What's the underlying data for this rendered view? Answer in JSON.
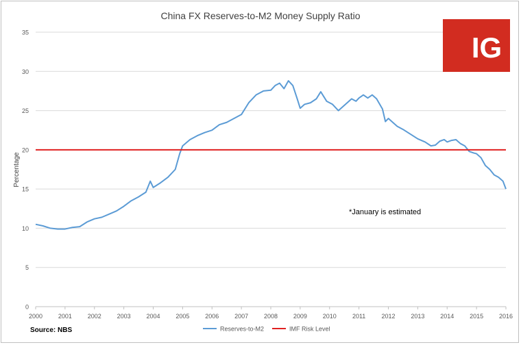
{
  "colors": {
    "series_line": "#5b9bd5",
    "risk_line": "#e02020",
    "grid": "#d9d9d9",
    "logo_bg": "#d22c20",
    "logo_text": "#ffffff"
  },
  "logo": {
    "text": "IG"
  },
  "source": "Source: NBS",
  "chart_data": {
    "type": "line",
    "title": "China FX Reserves-to-M2 Money Supply Ratio",
    "xlabel": "",
    "ylabel": "Percentage",
    "xlim": [
      2000,
      2016
    ],
    "ylim": [
      0,
      35
    ],
    "grid": true,
    "legend_position": "bottom-center",
    "x_ticks": [
      2000,
      2001,
      2002,
      2003,
      2004,
      2005,
      2006,
      2007,
      2008,
      2009,
      2010,
      2011,
      2012,
      2013,
      2014,
      2015,
      2016
    ],
    "y_ticks": [
      0,
      5,
      10,
      15,
      20,
      25,
      30,
      35
    ],
    "annotation": "*January is estimated",
    "series": [
      {
        "name": "Reserves-to-M2",
        "points": [
          [
            2000.0,
            10.5
          ],
          [
            2000.25,
            10.3
          ],
          [
            2000.5,
            10.0
          ],
          [
            2000.75,
            9.9
          ],
          [
            2001.0,
            9.9
          ],
          [
            2001.25,
            10.1
          ],
          [
            2001.5,
            10.2
          ],
          [
            2001.75,
            10.8
          ],
          [
            2002.0,
            11.2
          ],
          [
            2002.25,
            11.4
          ],
          [
            2002.5,
            11.8
          ],
          [
            2002.75,
            12.2
          ],
          [
            2003.0,
            12.8
          ],
          [
            2003.25,
            13.5
          ],
          [
            2003.5,
            14.0
          ],
          [
            2003.75,
            14.6
          ],
          [
            2003.9,
            16.0
          ],
          [
            2004.0,
            15.2
          ],
          [
            2004.25,
            15.8
          ],
          [
            2004.5,
            16.5
          ],
          [
            2004.75,
            17.5
          ],
          [
            2004.9,
            19.5
          ],
          [
            2005.0,
            20.5
          ],
          [
            2005.25,
            21.3
          ],
          [
            2005.5,
            21.8
          ],
          [
            2005.75,
            22.2
          ],
          [
            2006.0,
            22.5
          ],
          [
            2006.25,
            23.2
          ],
          [
            2006.5,
            23.5
          ],
          [
            2006.75,
            24.0
          ],
          [
            2007.0,
            24.5
          ],
          [
            2007.25,
            26.0
          ],
          [
            2007.5,
            27.0
          ],
          [
            2007.75,
            27.5
          ],
          [
            2008.0,
            27.6
          ],
          [
            2008.15,
            28.2
          ],
          [
            2008.3,
            28.5
          ],
          [
            2008.45,
            27.8
          ],
          [
            2008.6,
            28.8
          ],
          [
            2008.75,
            28.2
          ],
          [
            2008.9,
            26.5
          ],
          [
            2009.0,
            25.3
          ],
          [
            2009.15,
            25.8
          ],
          [
            2009.35,
            26.0
          ],
          [
            2009.55,
            26.5
          ],
          [
            2009.7,
            27.4
          ],
          [
            2009.9,
            26.2
          ],
          [
            2010.1,
            25.8
          ],
          [
            2010.3,
            25.0
          ],
          [
            2010.45,
            25.5
          ],
          [
            2010.6,
            26.0
          ],
          [
            2010.75,
            26.5
          ],
          [
            2010.9,
            26.2
          ],
          [
            2011.0,
            26.6
          ],
          [
            2011.15,
            27.0
          ],
          [
            2011.3,
            26.6
          ],
          [
            2011.45,
            27.0
          ],
          [
            2011.6,
            26.5
          ],
          [
            2011.8,
            25.2
          ],
          [
            2011.9,
            23.6
          ],
          [
            2012.0,
            24.0
          ],
          [
            2012.15,
            23.5
          ],
          [
            2012.3,
            23.0
          ],
          [
            2012.5,
            22.6
          ],
          [
            2012.75,
            22.0
          ],
          [
            2013.0,
            21.4
          ],
          [
            2013.25,
            21.0
          ],
          [
            2013.45,
            20.5
          ],
          [
            2013.6,
            20.6
          ],
          [
            2013.75,
            21.1
          ],
          [
            2013.9,
            21.3
          ],
          [
            2014.0,
            21.0
          ],
          [
            2014.15,
            21.2
          ],
          [
            2014.3,
            21.3
          ],
          [
            2014.45,
            20.8
          ],
          [
            2014.6,
            20.5
          ],
          [
            2014.75,
            19.8
          ],
          [
            2014.9,
            19.6
          ],
          [
            2015.0,
            19.5
          ],
          [
            2015.15,
            19.0
          ],
          [
            2015.3,
            18.0
          ],
          [
            2015.45,
            17.5
          ],
          [
            2015.6,
            16.8
          ],
          [
            2015.75,
            16.5
          ],
          [
            2015.9,
            16.0
          ],
          [
            2016.0,
            15.0
          ]
        ]
      },
      {
        "name": "IMF Risk Level",
        "points": [
          [
            2000.0,
            20.0
          ],
          [
            2016.0,
            20.0
          ]
        ]
      }
    ]
  }
}
